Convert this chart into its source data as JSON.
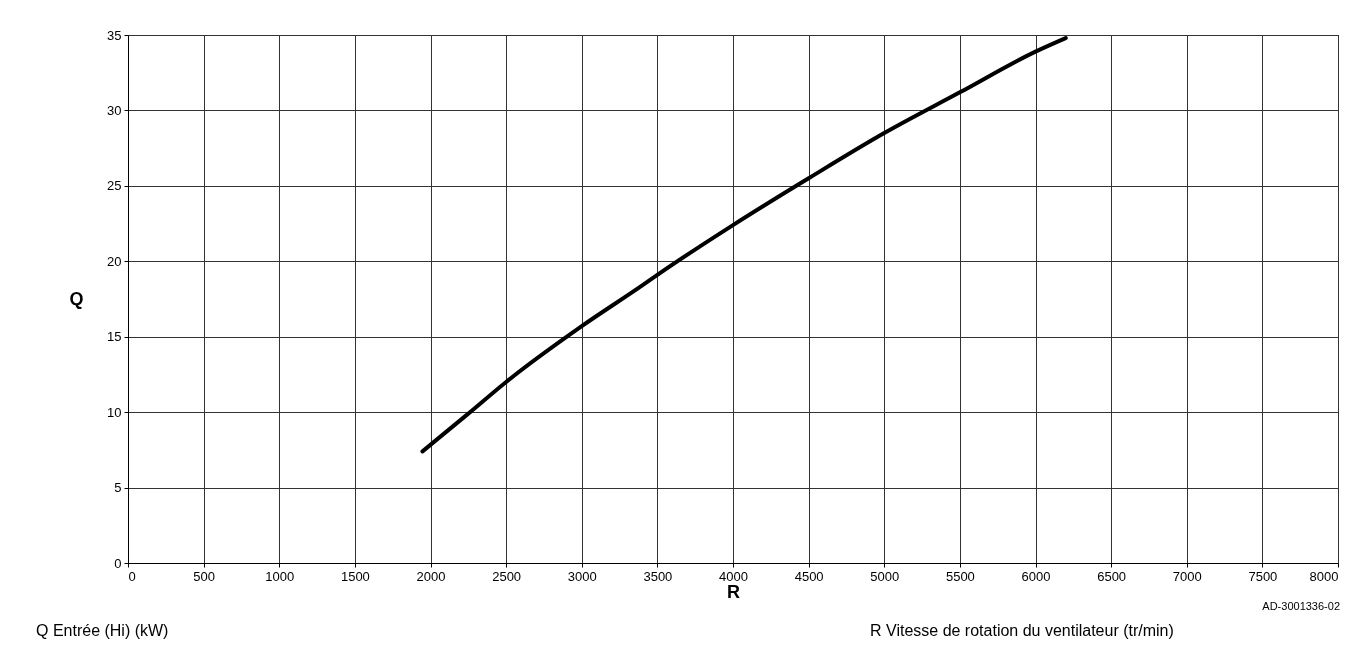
{
  "chart_data": {
    "type": "line",
    "xlabel": "R",
    "ylabel": "Q",
    "annotations": [
      "AD-3001336-02",
      "Q  Entrée (Hi) (kW)",
      "R  Vitesse de rotation du ventilateur (tr/min)"
    ],
    "x": [
      1947,
      2250,
      2500,
      3000,
      3400,
      3500,
      4000,
      4500,
      5000,
      5500,
      6000,
      6200
    ],
    "series": [
      {
        "color": "#000000",
        "values": [
          7.4,
          9.9,
          12.0,
          15.7,
          18.4,
          19.1,
          22.4,
          25.5,
          28.5,
          31.2,
          33.9,
          34.8
        ]
      }
    ],
    "xlim": [
      0,
      8000
    ],
    "xticks": [
      0,
      500,
      1000,
      1500,
      2000,
      2500,
      3000,
      3500,
      4000,
      4500,
      5000,
      5500,
      6000,
      6500,
      7000,
      7500,
      8000
    ],
    "ylim": [
      0,
      35
    ],
    "yticks": [
      0,
      5,
      10,
      15,
      20,
      25,
      30,
      35
    ],
    "grid": true,
    "marker": "none",
    "line_style": "solid"
  }
}
